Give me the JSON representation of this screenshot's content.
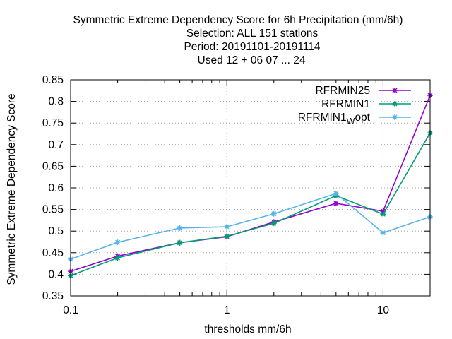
{
  "chart_data": {
    "type": "line",
    "title_lines": [
      "Symmetric Extreme Dependency Score  for 6h Precipitation (mm/6h)",
      "Selection: ALL    151 stations",
      "Period: 20191101-20191114",
      "Used  12 + 06 07 ... 24"
    ],
    "xlabel": "thresholds mm/6h",
    "ylabel": "Symmetric Extreme Dependency Score",
    "x_scale": "log",
    "xlim": [
      0.1,
      20
    ],
    "ylim": [
      0.35,
      0.85
    ],
    "x_tick_labels": [
      "0.1",
      "1",
      "10"
    ],
    "y_ticks": [
      "0.35",
      "0.4",
      "0.45",
      "0.5",
      "0.55",
      "0.6",
      "0.65",
      "0.7",
      "0.75",
      "0.8",
      "0.85"
    ],
    "grid": true,
    "legend_position": "top-right",
    "x": [
      0.1,
      0.2,
      0.5,
      1,
      2,
      5,
      10,
      20
    ],
    "series": [
      {
        "name": "RFRMIN25",
        "name_main": "RFRMIN25",
        "name_sub": "",
        "name_tail": "",
        "color": "#9400d3",
        "values": [
          0.407,
          0.442,
          0.473,
          0.487,
          0.521,
          0.564,
          0.546,
          0.814
        ]
      },
      {
        "name": "RFRMIN1",
        "name_main": "RFRMIN1",
        "name_sub": "",
        "name_tail": "",
        "color": "#009e73",
        "values": [
          0.397,
          0.438,
          0.473,
          0.488,
          0.518,
          0.582,
          0.539,
          0.727
        ]
      },
      {
        "name": "RFRMIN1Wopt",
        "name_main": "RFRMIN1",
        "name_sub": "W",
        "name_tail": "opt",
        "color": "#56b4e9",
        "values": [
          0.435,
          0.474,
          0.507,
          0.51,
          0.54,
          0.587,
          0.496,
          0.533
        ]
      }
    ]
  }
}
